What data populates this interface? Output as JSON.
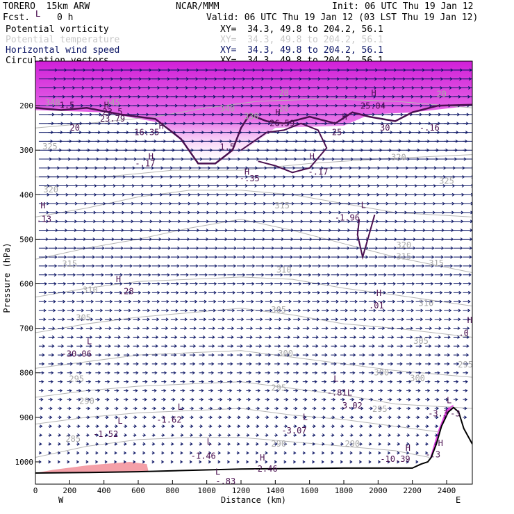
{
  "header": {
    "model": "TORERO  15km ARW",
    "center": "NCAR/MMM",
    "init": "Init: 06 UTC Thu 19 Jan 12",
    "fcst_label": "Fcst.",
    "fcst_value": "0 h",
    "valid": "Valid: 06 UTC Thu 19 Jan 12 (03 LST Thu 19 Jan 12)",
    "fields": [
      {
        "name": "Potential vorticity",
        "color": "#000000",
        "xy": "XY=  34.3, 49.8 to 204.2, 56.1"
      },
      {
        "name": "Potential temperature",
        "color": "#c8c8c8",
        "xy": "XY=  34.3, 49.8 to 204.2, 56.1"
      },
      {
        "name": "Horizontal wind speed",
        "color": "#0a1464",
        "xy": "XY=  34.3, 49.8 to 204.2, 56.1"
      },
      {
        "name": "Circulation vectors",
        "color": "#000000",
        "xy": "XY=  34.3, 49.8 to 204.2, 56.1"
      }
    ]
  },
  "chart_data": {
    "type": "cross-section",
    "xlabel": "Distance (km)",
    "ylabel": "Pressure (hPa)",
    "xlim": [
      0,
      2550
    ],
    "ylim": [
      1050,
      100
    ],
    "x_ticks": [
      "0",
      "200",
      "400",
      "600",
      "800",
      "1000",
      "1200",
      "1400",
      "1600",
      "1800",
      "2000",
      "2200",
      "2400"
    ],
    "y_ticks": [
      "200",
      "300",
      "400",
      "500",
      "600",
      "700",
      "800",
      "900",
      "1000"
    ],
    "left_end": "W",
    "right_end": "E",
    "colors": {
      "pv_fill": "#e040e0",
      "low_level_fill": "#f4a0a8",
      "theta": "#b4b4b4",
      "vectors": "#0a1464",
      "pv_line": "#4a1050",
      "terrain": "#000000"
    },
    "theta_labels": [
      {
        "text": "340",
        "x": 100,
        "p": 200
      },
      {
        "text": "345",
        "x": 450,
        "p": 200
      },
      {
        "text": "340",
        "x": 1120,
        "p": 213
      },
      {
        "text": "330",
        "x": 1260,
        "p": 230
      },
      {
        "text": "325",
        "x": 85,
        "p": 298
      },
      {
        "text": "320",
        "x": 90,
        "p": 395
      },
      {
        "text": "320",
        "x": 2150,
        "p": 520
      },
      {
        "text": "325",
        "x": 2400,
        "p": 375
      },
      {
        "text": "320",
        "x": 2120,
        "p": 322
      },
      {
        "text": "315",
        "x": 1440,
        "p": 431
      },
      {
        "text": "315",
        "x": 200,
        "p": 562
      },
      {
        "text": "315",
        "x": 2150,
        "p": 545
      },
      {
        "text": "315",
        "x": 2340,
        "p": 560
      },
      {
        "text": "310",
        "x": 1450,
        "p": 575
      },
      {
        "text": "310",
        "x": 320,
        "p": 620
      },
      {
        "text": "310",
        "x": 2280,
        "p": 650
      },
      {
        "text": "305",
        "x": 280,
        "p": 683
      },
      {
        "text": "305",
        "x": 1420,
        "p": 665
      },
      {
        "text": "305",
        "x": 2250,
        "p": 735
      },
      {
        "text": "300",
        "x": 1460,
        "p": 763
      },
      {
        "text": "300",
        "x": 2020,
        "p": 806
      },
      {
        "text": "300",
        "x": 2230,
        "p": 818
      },
      {
        "text": "295",
        "x": 240,
        "p": 820
      },
      {
        "text": "295",
        "x": 1420,
        "p": 840
      },
      {
        "text": "295",
        "x": 2510,
        "p": 788
      },
      {
        "text": "290",
        "x": 300,
        "p": 870
      },
      {
        "text": "295",
        "x": 2010,
        "p": 888
      },
      {
        "text": "285",
        "x": 220,
        "p": 955
      },
      {
        "text": "290",
        "x": 1420,
        "p": 966
      },
      {
        "text": "290",
        "x": 1850,
        "p": 966
      },
      {
        "text": "20",
        "x": 1450,
        "p": 213
      },
      {
        "text": "20",
        "x": 1450,
        "p": 178
      },
      {
        "text": "20",
        "x": 2370,
        "p": 180
      }
    ],
    "pv_extrema": [
      {
        "mark": "L",
        "value": "-1.5",
        "x": 170,
        "p": 205,
        "mark_x": 0,
        "mark_p": 0
      },
      {
        "mark": "H",
        "value": "23.5",
        "x": 450,
        "p": 220,
        "mark_x": 400,
        "mark_p": 205
      },
      {
        "mark": "",
        "value": "23.79",
        "x": 450,
        "p": 236,
        "mark_x": 0,
        "mark_p": 0
      },
      {
        "mark": "H",
        "value": "16.35",
        "x": 650,
        "p": 266,
        "mark_x": 720,
        "mark_p": 252
      },
      {
        "mark": "H",
        "value": "-.17",
        "x": 640,
        "p": 336,
        "mark_x": 660,
        "mark_p": 321
      },
      {
        "mark": "H",
        "value": "-.35",
        "x": 1250,
        "p": 370,
        "mark_x": 1220,
        "mark_p": 355
      },
      {
        "mark": "H",
        "value": "-.17",
        "x": 1650,
        "p": 355,
        "mark_x": 1600,
        "mark_p": 321
      },
      {
        "mark": "H",
        "value": "26.59",
        "x": 1440,
        "p": 246,
        "mark_x": 1400,
        "mark_p": 222
      },
      {
        "mark": "H",
        "value": "25.04",
        "x": 1970,
        "p": 207,
        "mark_x": 1960,
        "mark_p": 178
      },
      {
        "mark": "H",
        "value": "30",
        "x": 2040,
        "p": 256,
        "mark_x": 1790,
        "mark_p": 232
      },
      {
        "mark": "",
        "value": "-.16",
        "x": 2300,
        "p": 256,
        "mark_x": 2150,
        "mark_p": 232
      },
      {
        "mark": "",
        "value": "25",
        "x": 1760,
        "p": 266,
        "mark_x": 0,
        "mark_p": 0
      },
      {
        "mark": "",
        "value": "20",
        "x": 230,
        "p": 256,
        "mark_x": 0,
        "mark_p": 0
      },
      {
        "mark": "",
        "value": "1.5",
        "x": 1120,
        "p": 299,
        "mark_x": 0,
        "mark_p": 0
      },
      {
        "mark": "H",
        "value": ".13",
        "x": 50,
        "p": 461,
        "mark_x": 30,
        "mark_p": 431
      },
      {
        "mark": "L",
        "value": "-1.96",
        "x": 1820,
        "p": 458,
        "mark_x": 1900,
        "mark_p": 430
      },
      {
        "mark": "H",
        "value": ".28",
        "x": 530,
        "p": 623,
        "mark_x": 470,
        "mark_p": 596
      },
      {
        "mark": "H",
        "value": ".01",
        "x": 1990,
        "p": 655,
        "mark_x": 1990,
        "mark_p": 627
      },
      {
        "mark": "H",
        "value": ".0",
        "x": 2500,
        "p": 717,
        "mark_x": 2520,
        "mark_p": 688
      },
      {
        "mark": "L",
        "value": "-30.06",
        "x": 240,
        "p": 764,
        "mark_x": 300,
        "mark_p": 736
      },
      {
        "mark": "L",
        "value": "-.81",
        "x": 1760,
        "p": 851,
        "mark_x": 1740,
        "mark_p": 820
      },
      {
        "mark": "L",
        "value": "3.02",
        "x": 1850,
        "p": 880,
        "mark_x": 1820,
        "mark_p": 851
      },
      {
        "mark": "L",
        "value": "-1.62",
        "x": 780,
        "p": 912,
        "mark_x": 830,
        "mark_p": 883
      },
      {
        "mark": "L",
        "value": "-1.52",
        "x": 410,
        "p": 944,
        "mark_x": 480,
        "mark_p": 914
      },
      {
        "mark": "L",
        "value": "-3.07",
        "x": 1510,
        "p": 936,
        "mark_x": 1560,
        "mark_p": 906
      },
      {
        "mark": "L",
        "value": "-1.46",
        "x": 980,
        "p": 993,
        "mark_x": 1000,
        "mark_p": 961
      },
      {
        "mark": "H",
        "value": "-10.39",
        "x": 2100,
        "p": 1000,
        "mark_x": 2160,
        "mark_p": 975
      },
      {
        "mark": "H",
        "value": "-2.46",
        "x": 1340,
        "p": 1022,
        "mark_x": 1310,
        "mark_p": 997
      },
      {
        "mark": "L",
        "value": "-.83",
        "x": 1110,
        "p": 1050,
        "mark_x": 1050,
        "mark_p": 1029
      },
      {
        "mark": "L",
        "value": "-3.3",
        "x": 2350,
        "p": 898,
        "mark_x": 2400,
        "mark_p": 868
      },
      {
        "mark": "L",
        "value": "-3",
        "x": 2450,
        "p": 898,
        "mark_x": 0,
        "mark_p": 0
      },
      {
        "mark": "H",
        "value": "-.3",
        "x": 2320,
        "p": 990,
        "mark_x": 2350,
        "mark_p": 964
      }
    ],
    "terrain": [
      [
        0,
        1025
      ],
      [
        300,
        1024
      ],
      [
        600,
        1022
      ],
      [
        900,
        1019
      ],
      [
        1200,
        1016
      ],
      [
        1500,
        1015
      ],
      [
        1800,
        1014
      ],
      [
        2100,
        1014
      ],
      [
        2200,
        1014
      ],
      [
        2250,
        1005
      ],
      [
        2290,
        1000
      ],
      [
        2310,
        990
      ],
      [
        2340,
        960
      ],
      [
        2370,
        920
      ],
      [
        2410,
        888
      ],
      [
        2440,
        878
      ],
      [
        2470,
        888
      ],
      [
        2500,
        925
      ],
      [
        2550,
        960
      ]
    ],
    "theta_lines": [
      [
        [
          0,
          250
        ],
        [
          300,
          240
        ],
        [
          700,
          225
        ],
        [
          1000,
          205
        ],
        [
          1300,
          190
        ],
        [
          1700,
          185
        ],
        [
          2100,
          190
        ],
        [
          2550,
          205
        ]
      ],
      [
        [
          0,
          360
        ],
        [
          400,
          360
        ],
        [
          800,
          345
        ],
        [
          1200,
          345
        ],
        [
          1600,
          330
        ],
        [
          2000,
          320
        ],
        [
          2550,
          310
        ]
      ],
      [
        [
          0,
          450
        ],
        [
          300,
          430
        ],
        [
          600,
          405
        ],
        [
          900,
          390
        ],
        [
          1200,
          390
        ],
        [
          1500,
          400
        ],
        [
          1800,
          420
        ],
        [
          2100,
          440
        ],
        [
          2550,
          450
        ]
      ],
      [
        [
          0,
          545
        ],
        [
          300,
          520
        ],
        [
          600,
          500
        ],
        [
          900,
          475
        ],
        [
          1200,
          455
        ],
        [
          1500,
          480
        ],
        [
          1800,
          510
        ],
        [
          2100,
          540
        ],
        [
          2550,
          575
        ]
      ],
      [
        [
          0,
          630
        ],
        [
          300,
          610
        ],
        [
          600,
          595
        ],
        [
          900,
          590
        ],
        [
          1200,
          585
        ],
        [
          1500,
          590
        ],
        [
          1800,
          610
        ],
        [
          2100,
          625
        ],
        [
          2550,
          650
        ]
      ],
      [
        [
          0,
          710
        ],
        [
          300,
          690
        ],
        [
          600,
          675
        ],
        [
          900,
          665
        ],
        [
          1200,
          655
        ],
        [
          1500,
          670
        ],
        [
          1800,
          690
        ],
        [
          2100,
          700
        ],
        [
          2550,
          720
        ]
      ],
      [
        [
          0,
          790
        ],
        [
          300,
          775
        ],
        [
          600,
          760
        ],
        [
          900,
          755
        ],
        [
          1200,
          750
        ],
        [
          1500,
          765
        ],
        [
          1800,
          780
        ],
        [
          2100,
          795
        ],
        [
          2550,
          810
        ]
      ],
      [
        [
          0,
          855
        ],
        [
          300,
          840
        ],
        [
          600,
          830
        ],
        [
          900,
          825
        ],
        [
          1200,
          820
        ],
        [
          1500,
          835
        ],
        [
          1800,
          850
        ],
        [
          2100,
          870
        ],
        [
          2550,
          880
        ]
      ],
      [
        [
          0,
          915
        ],
        [
          300,
          900
        ],
        [
          600,
          890
        ],
        [
          900,
          885
        ],
        [
          1200,
          880
        ],
        [
          1500,
          895
        ],
        [
          1800,
          905
        ],
        [
          2100,
          920
        ],
        [
          2400,
          935
        ]
      ],
      [
        [
          0,
          990
        ],
        [
          300,
          965
        ],
        [
          600,
          950
        ],
        [
          900,
          945
        ],
        [
          1200,
          945
        ],
        [
          1500,
          955
        ],
        [
          1800,
          965
        ],
        [
          2100,
          975
        ],
        [
          2300,
          990
        ]
      ]
    ],
    "pv2_line": [
      [
        0,
        205
      ],
      [
        150,
        210
      ],
      [
        300,
        205
      ],
      [
        500,
        220
      ],
      [
        700,
        230
      ],
      [
        850,
        275
      ],
      [
        950,
        330
      ],
      [
        1050,
        330
      ],
      [
        1150,
        300
      ],
      [
        1200,
        250
      ],
      [
        1250,
        220
      ],
      [
        1350,
        235
      ],
      [
        1450,
        240
      ],
      [
        1600,
        225
      ],
      [
        1750,
        240
      ],
      [
        1850,
        215
      ],
      [
        1950,
        225
      ],
      [
        2100,
        235
      ],
      [
        2200,
        215
      ],
      [
        2350,
        200
      ],
      [
        2550,
        198
      ]
    ],
    "pv_mid_line": [
      [
        1200,
        300
      ],
      [
        1350,
        260
      ],
      [
        1450,
        255
      ],
      [
        1550,
        240
      ],
      [
        1650,
        255
      ],
      [
        1700,
        295
      ],
      [
        1600,
        340
      ],
      [
        1500,
        350
      ],
      [
        1400,
        335
      ],
      [
        1300,
        325
      ]
    ],
    "pv_small_line": [
      [
        1890,
        455
      ],
      [
        1880,
        490
      ],
      [
        1910,
        540
      ],
      [
        1940,
        500
      ],
      [
        1980,
        445
      ]
    ]
  }
}
